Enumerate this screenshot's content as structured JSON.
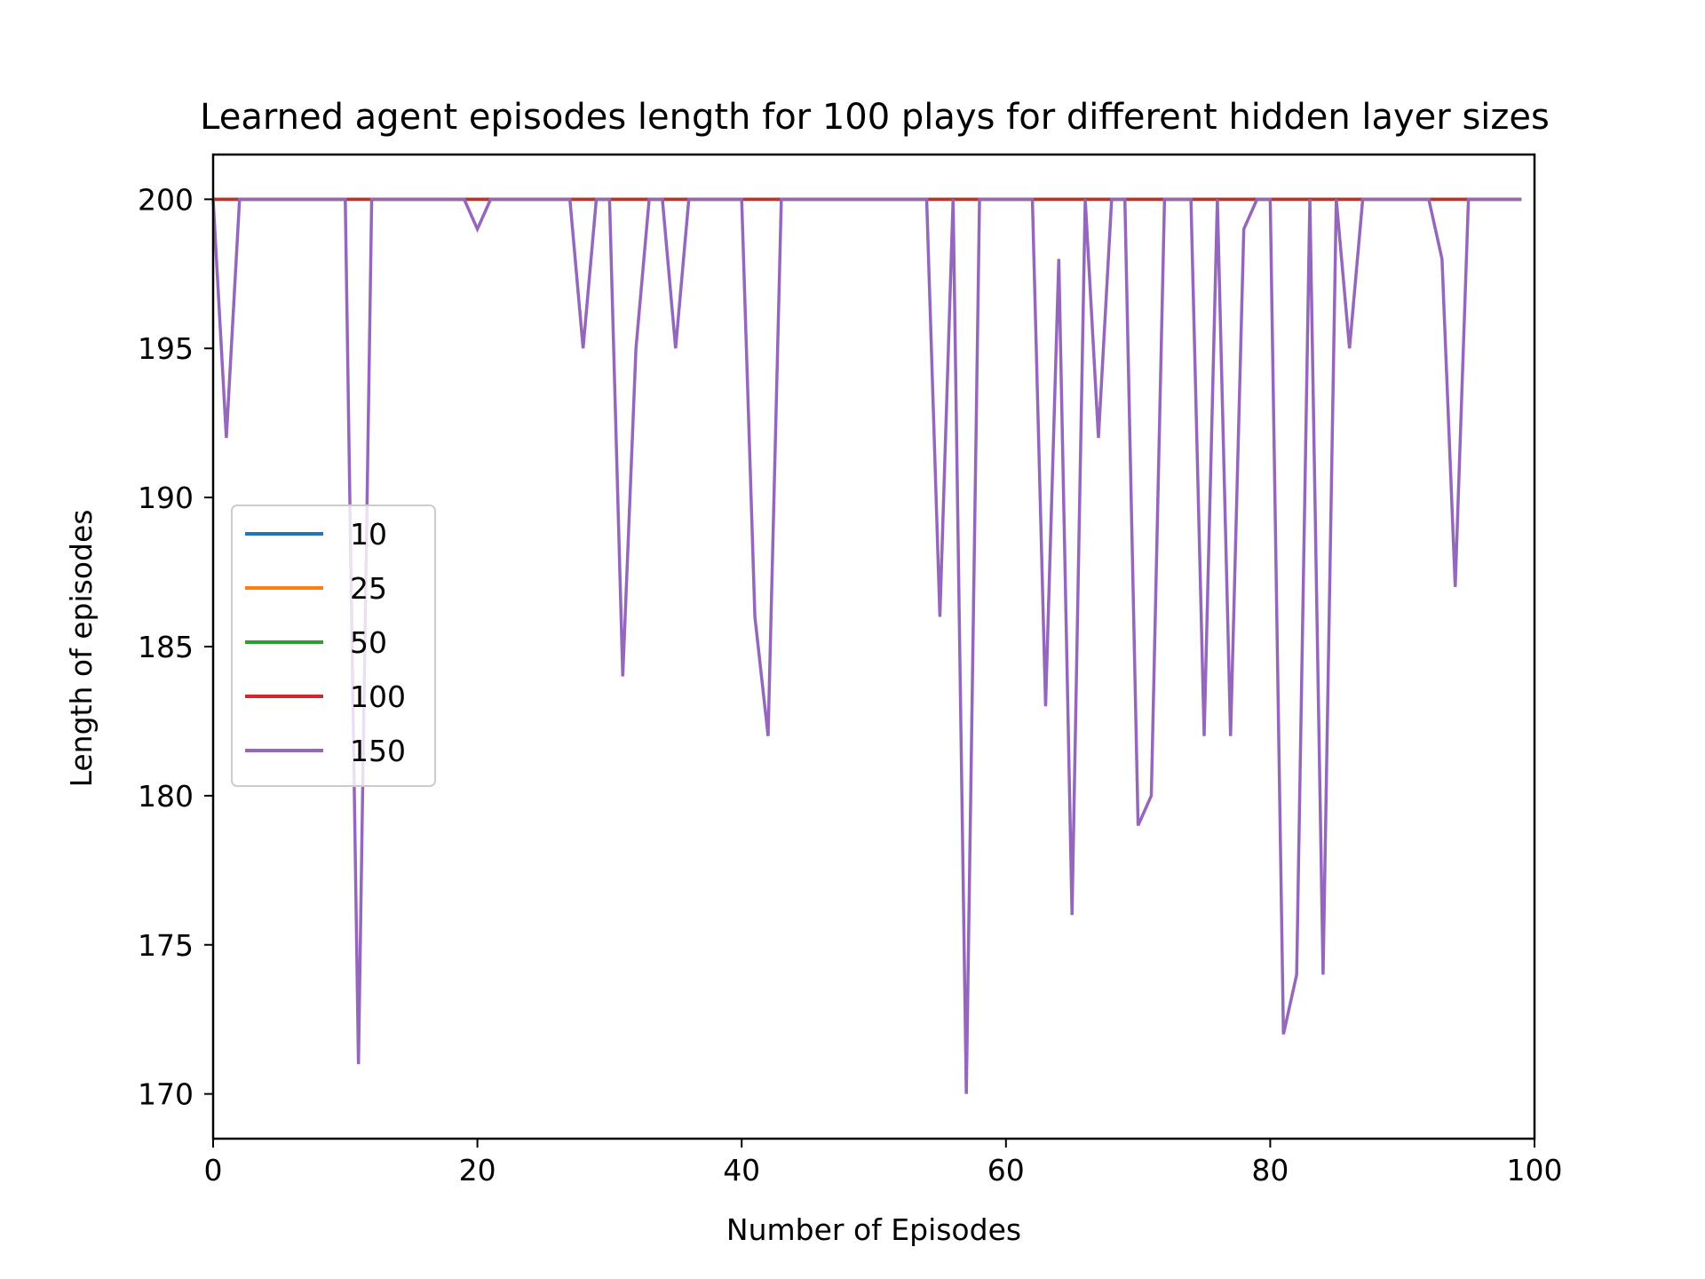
{
  "chart_data": {
    "type": "line",
    "title": "Learned agent episodes length for 100 plays for different hidden layer sizes",
    "xlabel": "Number of Episodes",
    "ylabel": "Length of episodes",
    "xlim": [
      0,
      100
    ],
    "ylim": [
      168.5,
      201.5
    ],
    "x_ticks": [
      0,
      20,
      40,
      60,
      80,
      100
    ],
    "y_ticks": [
      170,
      175,
      180,
      185,
      190,
      195,
      200
    ],
    "grid": false,
    "legend_position": "center-left",
    "n_points": 100,
    "series": [
      {
        "name": "10",
        "color": "#1f77b4",
        "constant": 200
      },
      {
        "name": "25",
        "color": "#ff7f0e",
        "constant": 200
      },
      {
        "name": "50",
        "color": "#2ca02c",
        "constant": 200
      },
      {
        "name": "100",
        "color": "#d62728",
        "constant": 200
      },
      {
        "name": "150",
        "color": "#9467bd",
        "values": [
          200,
          192,
          200,
          200,
          200,
          200,
          200,
          200,
          200,
          200,
          200,
          171,
          200,
          200,
          200,
          200,
          200,
          200,
          200,
          200,
          199,
          200,
          200,
          200,
          200,
          200,
          200,
          200,
          195,
          200,
          200,
          184,
          195,
          200,
          200,
          195,
          200,
          200,
          200,
          200,
          200,
          186,
          182,
          200,
          200,
          200,
          200,
          200,
          200,
          200,
          200,
          200,
          200,
          200,
          200,
          186,
          200,
          170,
          200,
          200,
          200,
          200,
          200,
          183,
          198,
          176,
          200,
          192,
          200,
          200,
          179,
          180,
          200,
          200,
          200,
          182,
          200,
          182,
          199,
          200,
          200,
          172,
          174,
          200,
          174,
          200,
          195,
          200,
          200,
          200,
          200,
          200,
          200,
          198,
          187,
          200,
          200,
          200,
          200,
          200
        ]
      }
    ]
  }
}
